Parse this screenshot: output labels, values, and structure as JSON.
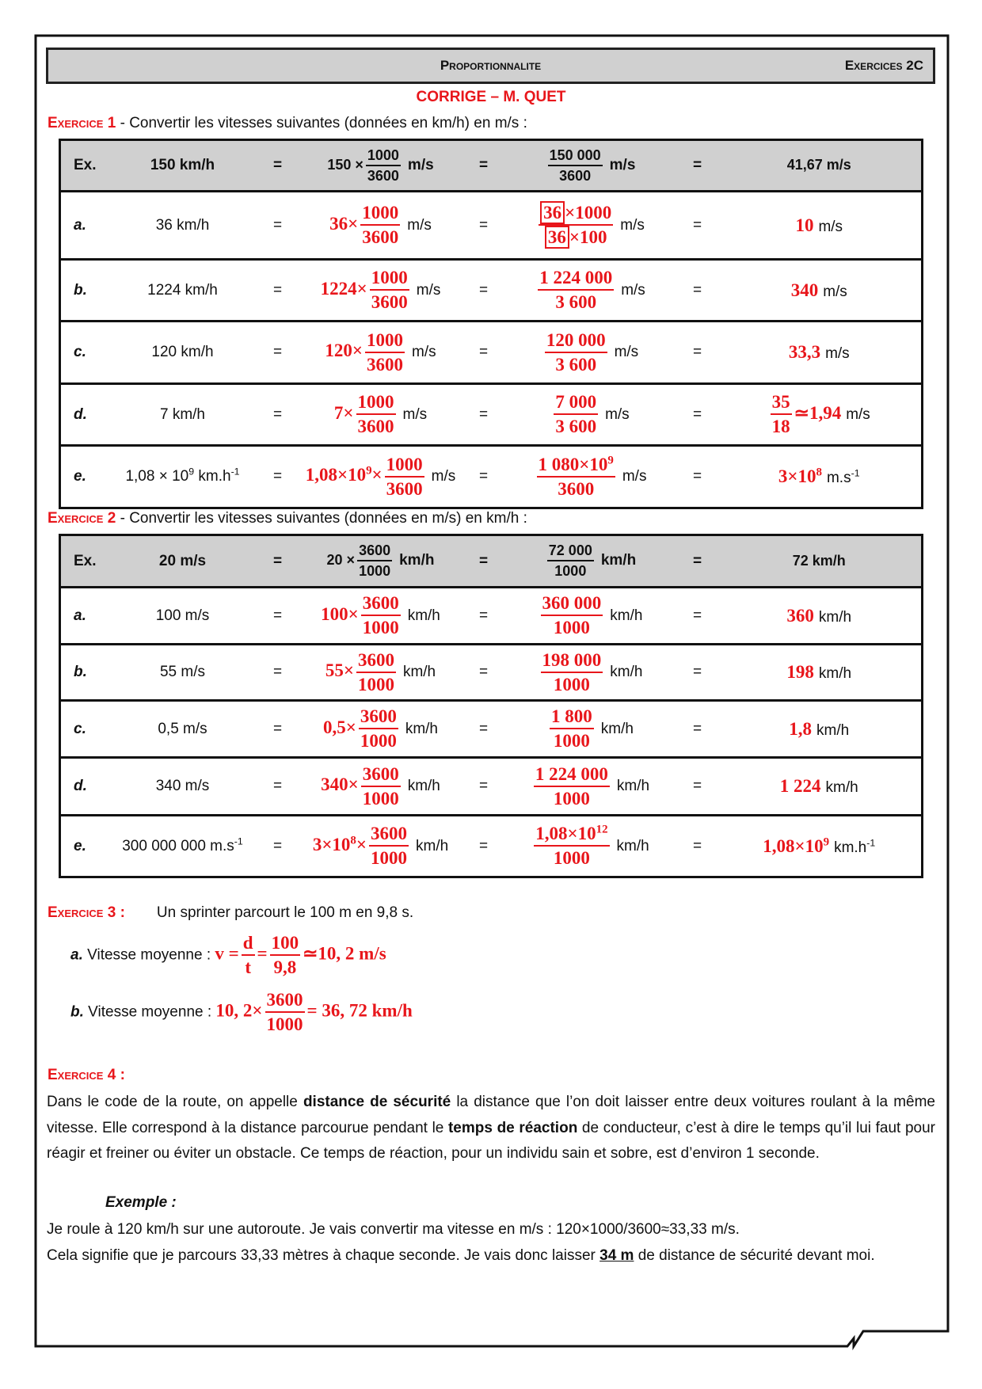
{
  "header": {
    "title": "Proportionnalite",
    "right": "Exercices 2C"
  },
  "subtitle": "CORRIGE – M. QUET",
  "ex1": {
    "label": "Exercice 1",
    "text": " - Convertir les vitesses suivantes (données en km/h) en m/s :",
    "rows": [
      {
        "ex": "Ex.",
        "val": [
          "150 km/h"
        ],
        "f1": {
          "pre": [
            "150 ×"
          ],
          "num": [
            "1000"
          ],
          "den": [
            "3600"
          ],
          "unit": [
            "m/s"
          ]
        },
        "f2": {
          "num": [
            "150 000"
          ],
          "den": [
            "3600"
          ],
          "unit": [
            "m/s"
          ]
        },
        "res": {
          "post": [
            "41,67 m/s"
          ]
        }
      },
      {
        "ex": "a.",
        "val": [
          "36 km/h"
        ],
        "f1": {
          "pre": [
            "36×"
          ],
          "num": [
            "1000"
          ],
          "den": [
            "3600"
          ],
          "unit": [
            "m/s"
          ]
        },
        "f2": {
          "num": [
            {
              "box": "36"
            },
            "×1000"
          ],
          "den": [
            {
              "box": "36"
            },
            "×100"
          ],
          "unit": [
            "m/s"
          ]
        },
        "res": {
          "post": [
            "10"
          ],
          "unit": [
            "m/s"
          ]
        }
      },
      {
        "ex": "b.",
        "val": [
          "1224 km/h"
        ],
        "f1": {
          "pre": [
            "1224×"
          ],
          "num": [
            "1000"
          ],
          "den": [
            "3600"
          ],
          "unit": [
            "m/s"
          ]
        },
        "f2": {
          "num": [
            "1 224 000"
          ],
          "den": [
            "3 600"
          ],
          "unit": [
            "m/s"
          ]
        },
        "res": {
          "post": [
            "340"
          ],
          "unit": [
            "m/s"
          ]
        }
      },
      {
        "ex": "c.",
        "val": [
          "120 km/h"
        ],
        "f1": {
          "pre": [
            "120×"
          ],
          "num": [
            "1000"
          ],
          "den": [
            "3600"
          ],
          "unit": [
            "m/s"
          ]
        },
        "f2": {
          "num": [
            "120 000"
          ],
          "den": [
            "3 600"
          ],
          "unit": [
            "m/s"
          ]
        },
        "res": {
          "post": [
            "33,3"
          ],
          "unit": [
            "m/s"
          ]
        }
      },
      {
        "ex": "d.",
        "val": [
          "7 km/h"
        ],
        "f1": {
          "pre": [
            "7×"
          ],
          "num": [
            "1000"
          ],
          "den": [
            "3600"
          ],
          "unit": [
            "m/s"
          ]
        },
        "f2": {
          "num": [
            "7 000"
          ],
          "den": [
            "3 600"
          ],
          "unit": [
            "m/s"
          ]
        },
        "res": {
          "num": [
            "35"
          ],
          "den": [
            "18"
          ],
          "post": [
            "≃1,94"
          ],
          "unit": [
            "m/s"
          ]
        }
      },
      {
        "ex": "e.",
        "val": [
          "1,08 × 10",
          {
            "sup": "9"
          },
          " km.h",
          {
            "sup": "-1"
          }
        ],
        "f1": {
          "pre": [
            "1,08×10",
            {
              "sup": "9"
            },
            "×"
          ],
          "num": [
            "1000"
          ],
          "den": [
            "3600"
          ],
          "unit": [
            "m/s"
          ]
        },
        "f2": {
          "num": [
            "1 080×10",
            {
              "sup": "9"
            }
          ],
          "den": [
            "3600"
          ],
          "unit": [
            "m/s"
          ]
        },
        "res": {
          "post": [
            "3×10",
            {
              "sup": "8"
            }
          ],
          "unit": [
            "m.s",
            {
              "sup": "-1"
            }
          ]
        }
      }
    ]
  },
  "ex2": {
    "label": "Exercice 2",
    "text": " - Convertir les  vitesses suivantes (données en m/s) en km/h :",
    "rows": [
      {
        "ex": "Ex.",
        "val": [
          "20 m/s"
        ],
        "f1": {
          "pre": [
            "20 ×"
          ],
          "num": [
            "3600"
          ],
          "den": [
            "1000"
          ],
          "unit": [
            "km/h"
          ]
        },
        "f2": {
          "num": [
            "72 000"
          ],
          "den": [
            "1000"
          ],
          "unit": [
            "km/h"
          ]
        },
        "res": {
          "post": [
            "72 km/h"
          ]
        }
      },
      {
        "ex": "a.",
        "val": [
          "100 m/s"
        ],
        "f1": {
          "pre": [
            "100×"
          ],
          "num": [
            "3600"
          ],
          "den": [
            "1000"
          ],
          "unit": [
            "km/h"
          ]
        },
        "f2": {
          "num": [
            "360 000"
          ],
          "den": [
            "1000"
          ],
          "unit": [
            "km/h"
          ]
        },
        "res": {
          "post": [
            "360"
          ],
          "unit": [
            "km/h"
          ]
        }
      },
      {
        "ex": "b.",
        "val": [
          "55 m/s"
        ],
        "f1": {
          "pre": [
            "55×"
          ],
          "num": [
            "3600"
          ],
          "den": [
            "1000"
          ],
          "unit": [
            "km/h"
          ]
        },
        "f2": {
          "num": [
            "198 000"
          ],
          "den": [
            "1000"
          ],
          "unit": [
            "km/h"
          ]
        },
        "res": {
          "post": [
            "198"
          ],
          "unit": [
            "km/h"
          ]
        }
      },
      {
        "ex": "c.",
        "val": [
          "0,5 m/s"
        ],
        "f1": {
          "pre": [
            "0,5×"
          ],
          "num": [
            "3600"
          ],
          "den": [
            "1000"
          ],
          "unit": [
            "km/h"
          ]
        },
        "f2": {
          "num": [
            "1 800"
          ],
          "den": [
            "1000"
          ],
          "unit": [
            "km/h"
          ]
        },
        "res": {
          "post": [
            "1,8"
          ],
          "unit": [
            "km/h"
          ]
        }
      },
      {
        "ex": "d.",
        "val": [
          "340 m/s"
        ],
        "f1": {
          "pre": [
            "340×"
          ],
          "num": [
            "3600"
          ],
          "den": [
            "1000"
          ],
          "unit": [
            "km/h"
          ]
        },
        "f2": {
          "num": [
            "1 224 000"
          ],
          "den": [
            "1000"
          ],
          "unit": [
            "km/h"
          ]
        },
        "res": {
          "post": [
            "1 224"
          ],
          "unit": [
            "km/h"
          ]
        }
      },
      {
        "ex": "e.",
        "val": [
          "300 000 000 m.s",
          {
            "sup": "-1"
          }
        ],
        "f1": {
          "pre": [
            "3×10",
            {
              "sup": "8"
            },
            "×"
          ],
          "num": [
            "3600"
          ],
          "den": [
            "1000"
          ],
          "unit": [
            "km/h"
          ]
        },
        "f2": {
          "num": [
            "1,08×10",
            {
              "sup": "12"
            }
          ],
          "den": [
            "1000"
          ],
          "unit": [
            "km/h"
          ]
        },
        "res": {
          "post": [
            "1,08×10",
            {
              "sup": "9"
            }
          ],
          "unit": [
            "km.h",
            {
              "sup": "-1"
            }
          ]
        }
      }
    ]
  },
  "ex3": {
    "label": "Exercice 3 :",
    "text": "Un sprinter parcourt le 100 m en 9,8 s.",
    "a_label": "a.",
    "a_text": " Vitesse moyenne : ",
    "a_v": "v =",
    "a_n1": "d",
    "a_d1": "t",
    "a_eq": "=",
    "a_n2": "100",
    "a_d2": "9,8",
    "a_res": "≃10, 2  m/s",
    "b_label": "b.",
    "b_text": " Vitesse moyenne : ",
    "b_pre": "10, 2×",
    "b_n": "3600",
    "b_d": "1000",
    "b_res": "= 36, 72  km/h"
  },
  "ex4": {
    "label": "Exercice 4 :",
    "p1": "Dans le code de la route, on appelle ",
    "b1": "distance de sécurité",
    "p2": " la distance que l’on doit laisser entre deux voitures roulant à la même vitesse. Elle correspond à la distance parcourue pendant le ",
    "b2": "temps de réaction",
    "p3": " de conducteur, c’est à dire le temps qu’il lui faut pour réagir et freiner ou éviter un obstacle. Ce temps de réaction, pour un individu sain et sobre, est d’environ 1 seconde.",
    "example_label": "Exemple :",
    "e1": "Je roule à 120 km/h sur une autoroute. Je vais convertir ma vitesse en m/s :      120×1000/3600≈33,33 m/s.",
    "e2a": "Cela signifie que je parcours 33,33 mètres à chaque seconde. Je vais donc laisser ",
    "e2b": "34 m",
    "e2c": " de distance de sécurité devant moi."
  }
}
